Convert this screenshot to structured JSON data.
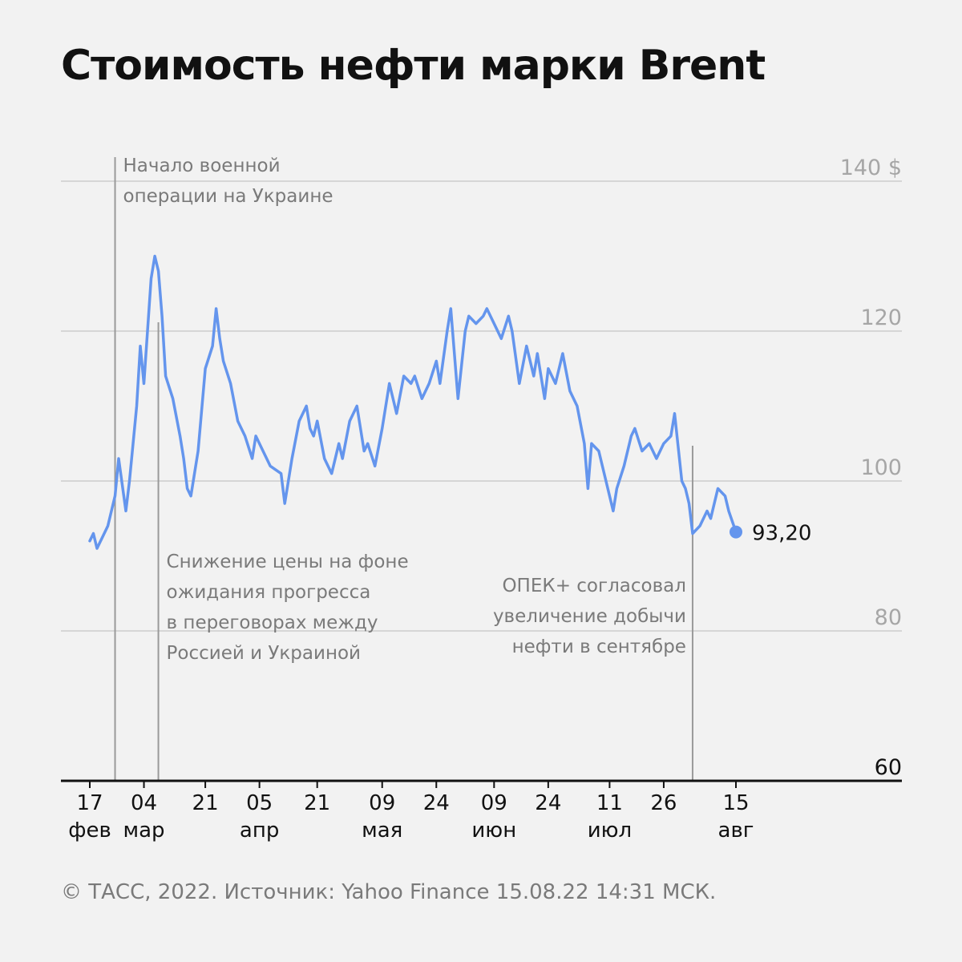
{
  "chart_data": {
    "type": "line",
    "title": "Стоимость нефти марки Brent",
    "source": "© ТАСС, 2022. Источник: Yahoo Finance 15.08.22 14:31 МСК.",
    "ylim": [
      60,
      140
    ],
    "y_unit": "$",
    "y_ticks": [
      {
        "value": 140,
        "label": "140 $"
      },
      {
        "value": 120,
        "label": "120"
      },
      {
        "value": 100,
        "label": "100"
      },
      {
        "value": 80,
        "label": "80"
      },
      {
        "value": 60,
        "label": "60"
      }
    ],
    "x_ticks": [
      {
        "date": "2022-02-17",
        "day": "17",
        "month": "фев"
      },
      {
        "date": "2022-03-04",
        "day": "04",
        "month": "мар"
      },
      {
        "date": "2022-03-21",
        "day": "21",
        "month": ""
      },
      {
        "date": "2022-04-05",
        "day": "05",
        "month": "апр"
      },
      {
        "date": "2022-04-21",
        "day": "21",
        "month": ""
      },
      {
        "date": "2022-05-09",
        "day": "09",
        "month": "мая"
      },
      {
        "date": "2022-05-24",
        "day": "24",
        "month": ""
      },
      {
        "date": "2022-06-09",
        "day": "09",
        "month": "июн"
      },
      {
        "date": "2022-06-24",
        "day": "24",
        "month": ""
      },
      {
        "date": "2022-07-11",
        "day": "11",
        "month": "июл"
      },
      {
        "date": "2022-07-26",
        "day": "26",
        "month": ""
      },
      {
        "date": "2022-08-15",
        "day": "15",
        "month": "авг"
      }
    ],
    "grid": true,
    "color": "#6495ed",
    "series": [
      {
        "x": [
          "2022-02-17",
          "2022-02-18",
          "2022-02-19",
          "2022-02-21",
          "2022-02-22",
          "2022-02-23",
          "2022-02-24",
          "2022-02-25",
          "2022-02-27",
          "2022-02-28",
          "2022-03-01",
          "2022-03-02",
          "2022-03-03",
          "2022-03-04",
          "2022-03-05",
          "2022-03-06",
          "2022-03-07",
          "2022-03-08",
          "2022-03-09",
          "2022-03-10",
          "2022-03-12",
          "2022-03-14",
          "2022-03-15",
          "2022-03-16",
          "2022-03-17",
          "2022-03-19",
          "2022-03-21",
          "2022-03-23",
          "2022-03-24",
          "2022-03-25",
          "2022-03-26",
          "2022-03-28",
          "2022-03-30",
          "2022-04-01",
          "2022-04-03",
          "2022-04-04",
          "2022-04-06",
          "2022-04-08",
          "2022-04-11",
          "2022-04-12",
          "2022-04-14",
          "2022-04-16",
          "2022-04-18",
          "2022-04-19",
          "2022-04-20",
          "2022-04-21",
          "2022-04-23",
          "2022-04-25",
          "2022-04-27",
          "2022-04-28",
          "2022-04-30",
          "2022-05-02",
          "2022-05-04",
          "2022-05-05",
          "2022-05-07",
          "2022-05-09",
          "2022-05-11",
          "2022-05-13",
          "2022-05-15",
          "2022-05-17",
          "2022-05-18",
          "2022-05-20",
          "2022-05-22",
          "2022-05-24",
          "2022-05-25",
          "2022-05-27",
          "2022-05-28",
          "2022-05-30",
          "2022-06-01",
          "2022-06-02",
          "2022-06-04",
          "2022-06-06",
          "2022-06-07",
          "2022-06-09",
          "2022-06-11",
          "2022-06-13",
          "2022-06-14",
          "2022-06-16",
          "2022-06-18",
          "2022-06-20",
          "2022-06-21",
          "2022-06-23",
          "2022-06-24",
          "2022-06-26",
          "2022-06-28",
          "2022-06-30",
          "2022-07-02",
          "2022-07-04",
          "2022-07-05",
          "2022-07-06",
          "2022-07-08",
          "2022-07-10",
          "2022-07-12",
          "2022-07-13",
          "2022-07-15",
          "2022-07-17",
          "2022-07-18",
          "2022-07-20",
          "2022-07-22",
          "2022-07-24",
          "2022-07-26",
          "2022-07-28",
          "2022-07-29",
          "2022-07-31",
          "2022-08-01",
          "2022-08-02",
          "2022-08-03",
          "2022-08-05",
          "2022-08-07",
          "2022-08-08",
          "2022-08-10",
          "2022-08-12",
          "2022-08-13",
          "2022-08-15"
        ],
        "y": [
          92,
          93,
          91,
          93,
          94,
          96,
          98,
          103,
          96,
          100,
          105,
          110,
          118,
          113,
          120,
          127,
          130,
          128,
          122,
          114,
          111,
          106,
          103,
          99,
          98,
          104,
          115,
          118,
          123,
          119,
          116,
          113,
          108,
          106,
          103,
          106,
          104,
          102,
          101,
          97,
          103,
          108,
          110,
          107,
          106,
          108,
          103,
          101,
          105,
          103,
          108,
          110,
          104,
          105,
          102,
          107,
          113,
          109,
          114,
          113,
          114,
          111,
          113,
          116,
          113,
          120,
          123,
          111,
          120,
          122,
          121,
          122,
          123,
          121,
          119,
          122,
          120,
          113,
          118,
          114,
          117,
          111,
          115,
          113,
          117,
          112,
          110,
          105,
          99,
          105,
          104,
          100,
          96,
          99,
          102,
          106,
          107,
          104,
          105,
          103,
          105,
          106,
          109,
          100,
          99,
          97,
          93,
          94,
          96,
          95,
          99,
          98,
          96,
          93.2
        ]
      }
    ],
    "last_value": {
      "date": "2022-08-15",
      "value": 93.2,
      "label": "93,20"
    },
    "events": [
      {
        "date": "2022-02-24",
        "lines": [
          "Начало военной",
          "операции на Украине"
        ],
        "text_side": "right",
        "text_top": "above-chart"
      },
      {
        "date": "2022-03-08",
        "lines": [
          "Снижение цены на фоне",
          "ожидания прогресса",
          "в переговорах между",
          "Россией и Украиной"
        ],
        "text_side": "right",
        "text_top": "lower"
      },
      {
        "date": "2022-08-03",
        "lines": [
          "ОПЕК+ согласовал",
          "увеличение добычи",
          "нефти в сентябре"
        ],
        "text_side": "left",
        "text_top": "lower"
      }
    ]
  }
}
